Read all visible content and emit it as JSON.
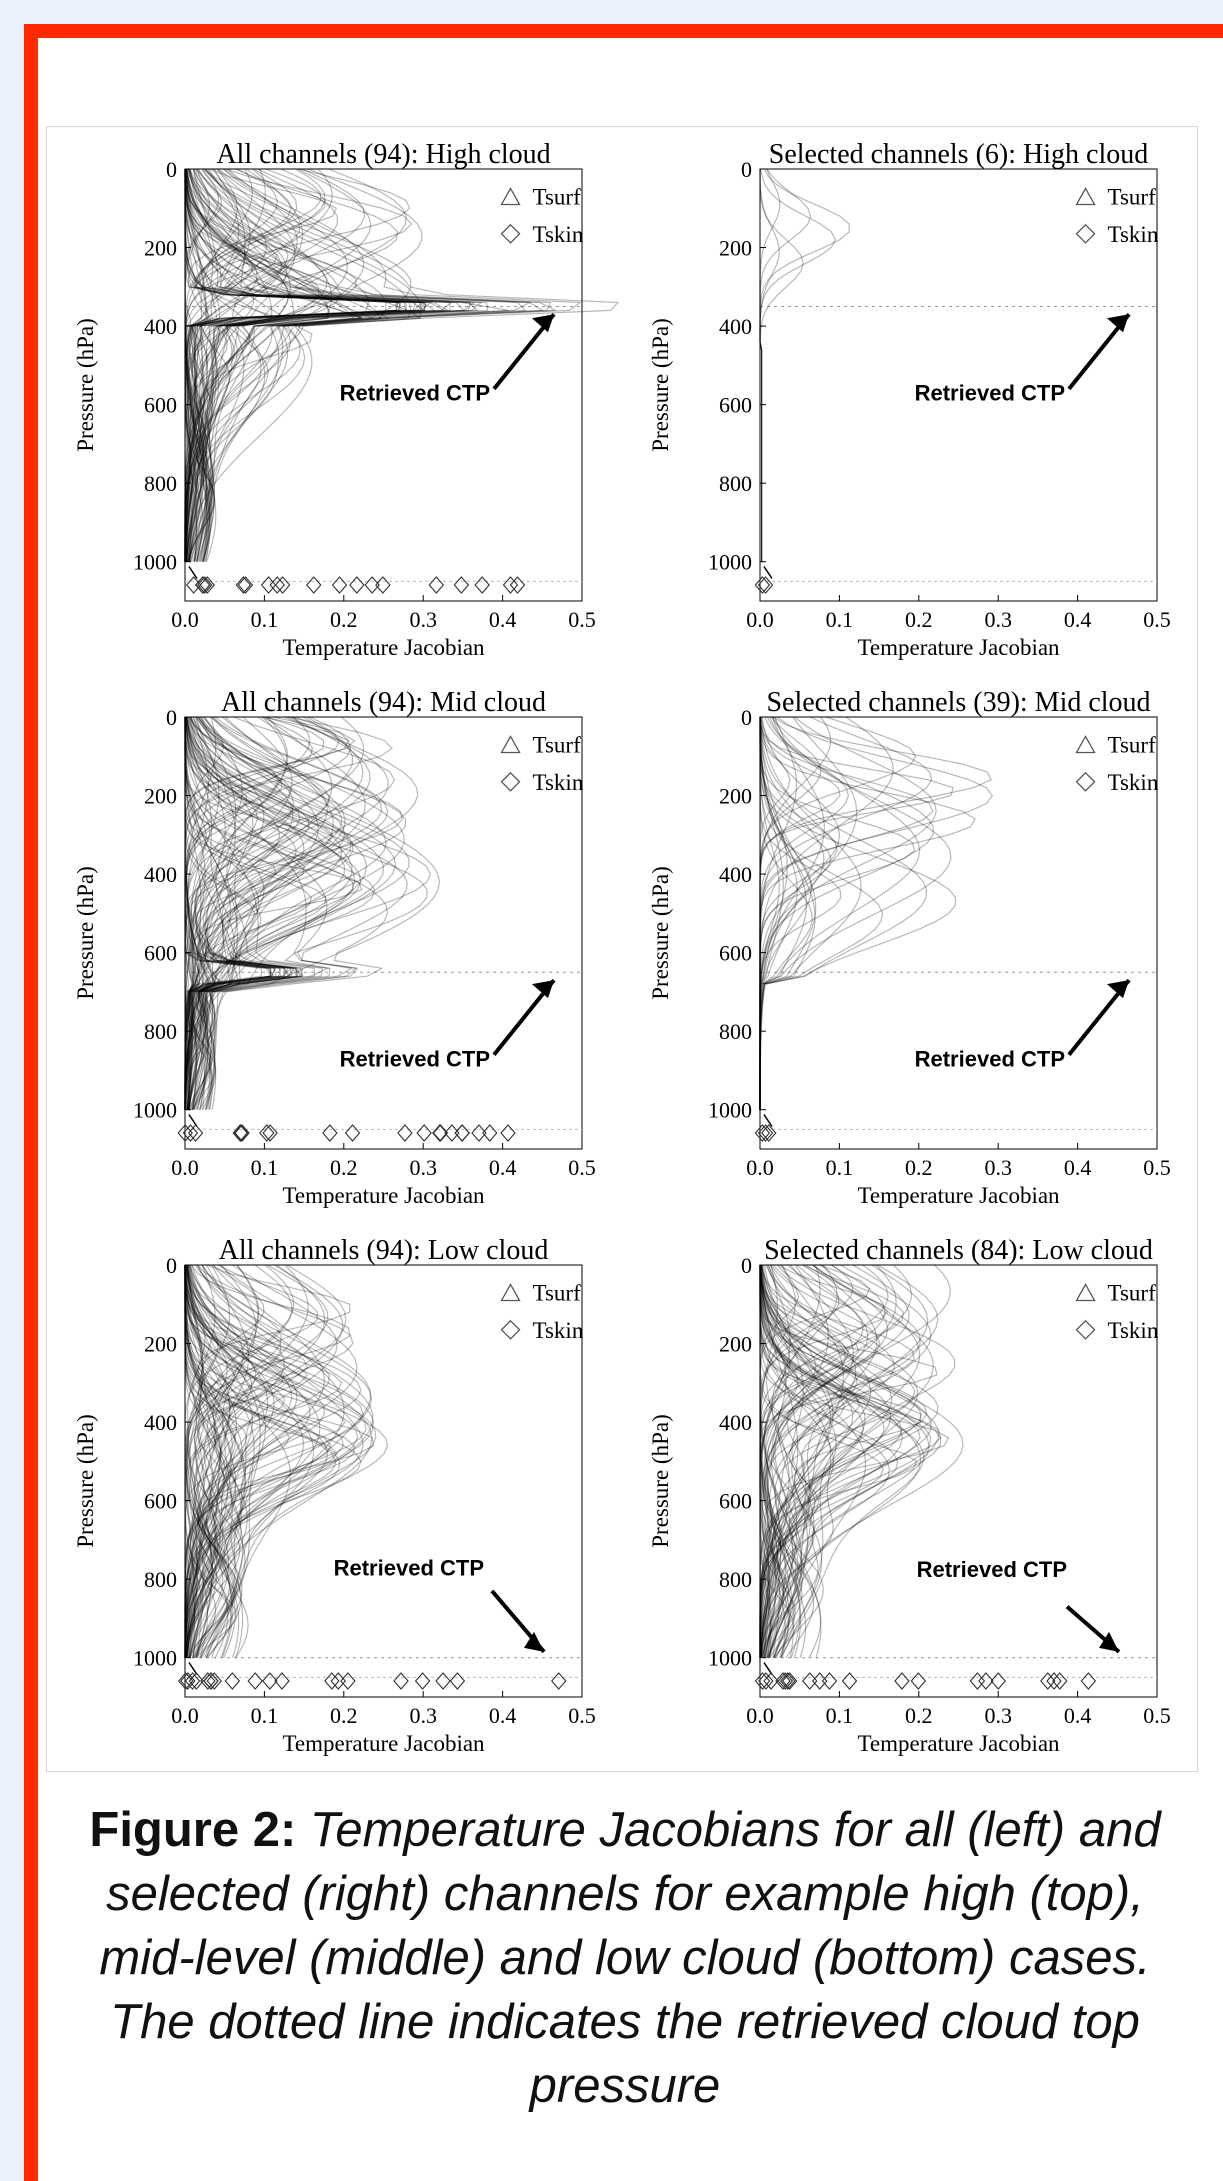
{
  "caption": {
    "lead": "Figure 2:",
    "body": " Temperature Jacobians for all (left) and selected (right) channels for example high (top), mid-level (middle) and low cloud (bottom) cases. The dotted line indicates the retrieved cloud top pressure"
  },
  "colors": {
    "frame": "#ff2a00",
    "background": "#e8f1fb",
    "lines": "#000000"
  },
  "chart_data": [
    {
      "type": "line",
      "title": "All channels (94): High cloud",
      "xlabel": "Temperature Jacobian",
      "ylabel": "Pressure (hPa)",
      "xlim": [
        0,
        0.5
      ],
      "ylim": [
        1100,
        0
      ],
      "y_reversed": true,
      "xticks": [
        "0.0",
        "0.1",
        "0.2",
        "0.3",
        "0.4",
        "0.5"
      ],
      "yticks": [
        "0",
        "200",
        "400",
        "600",
        "800",
        "1000"
      ],
      "legend": [
        "Tsurf",
        "Tskin"
      ],
      "legend_position": "top-right",
      "annotation": "Retrieved CTP",
      "retrieved_ctp_hPa": 350,
      "n_channels": 94,
      "peak_profile": [
        {
          "x": 0.36,
          "y": 350
        },
        {
          "x": 0.4,
          "y": 355
        }
      ]
    },
    {
      "type": "line",
      "title": "Selected channels (6): High cloud",
      "xlabel": "Temperature Jacobian",
      "ylabel": "Pressure (hPa)",
      "xlim": [
        0,
        0.5
      ],
      "ylim": [
        1100,
        0
      ],
      "y_reversed": true,
      "xticks": [
        "0.0",
        "0.1",
        "0.2",
        "0.3",
        "0.4",
        "0.5"
      ],
      "yticks": [
        "0",
        "200",
        "400",
        "600",
        "800",
        "1000"
      ],
      "legend": [
        "Tsurf",
        "Tskin"
      ],
      "legend_position": "top-right",
      "annotation": "Retrieved CTP",
      "retrieved_ctp_hPa": 350,
      "n_channels": 6
    },
    {
      "type": "line",
      "title": "All channels (94): Mid cloud",
      "xlabel": "Temperature Jacobian",
      "ylabel": "Pressure (hPa)",
      "xlim": [
        0,
        0.5
      ],
      "ylim": [
        1100,
        0
      ],
      "y_reversed": true,
      "xticks": [
        "0.0",
        "0.1",
        "0.2",
        "0.3",
        "0.4",
        "0.5"
      ],
      "yticks": [
        "0",
        "200",
        "400",
        "600",
        "800",
        "1000"
      ],
      "legend": [
        "Tsurf",
        "Tskin"
      ],
      "legend_position": "top-right",
      "annotation": "Retrieved CTP",
      "retrieved_ctp_hPa": 650,
      "n_channels": 94
    },
    {
      "type": "line",
      "title": "Selected channels (39): Mid cloud",
      "xlabel": "Temperature Jacobian",
      "ylabel": "Pressure (hPa)",
      "xlim": [
        0,
        0.5
      ],
      "ylim": [
        1100,
        0
      ],
      "y_reversed": true,
      "xticks": [
        "0.0",
        "0.1",
        "0.2",
        "0.3",
        "0.4",
        "0.5"
      ],
      "yticks": [
        "0",
        "200",
        "400",
        "600",
        "800",
        "1000"
      ],
      "legend": [
        "Tsurf",
        "Tskin"
      ],
      "legend_position": "top-right",
      "annotation": "Retrieved CTP",
      "retrieved_ctp_hPa": 650,
      "n_channels": 39
    },
    {
      "type": "line",
      "title": "All channels (94): Low cloud",
      "xlabel": "Temperature Jacobian",
      "ylabel": "Pressure (hPa)",
      "xlim": [
        0,
        0.5
      ],
      "ylim": [
        1100,
        0
      ],
      "y_reversed": true,
      "xticks": [
        "0.0",
        "0.1",
        "0.2",
        "0.3",
        "0.4",
        "0.5"
      ],
      "yticks": [
        "0",
        "200",
        "400",
        "600",
        "800",
        "1000"
      ],
      "legend": [
        "Tsurf",
        "Tskin"
      ],
      "legend_position": "top-right",
      "annotation": "Retrieved CTP",
      "retrieved_ctp_hPa": 1000,
      "n_channels": 94
    },
    {
      "type": "line",
      "title": "Selected channels (84): Low cloud",
      "xlabel": "Temperature Jacobian",
      "ylabel": "Pressure (hPa)",
      "xlim": [
        0,
        0.5
      ],
      "ylim": [
        1100,
        0
      ],
      "y_reversed": true,
      "xticks": [
        "0.0",
        "0.1",
        "0.2",
        "0.3",
        "0.4",
        "0.5"
      ],
      "yticks": [
        "0",
        "200",
        "400",
        "600",
        "800",
        "1000"
      ],
      "legend": [
        "Tsurf",
        "Tskin"
      ],
      "legend_position": "top-right",
      "annotation": "Retrieved CTP",
      "retrieved_ctp_hPa": 1000,
      "n_channels": 84
    }
  ]
}
